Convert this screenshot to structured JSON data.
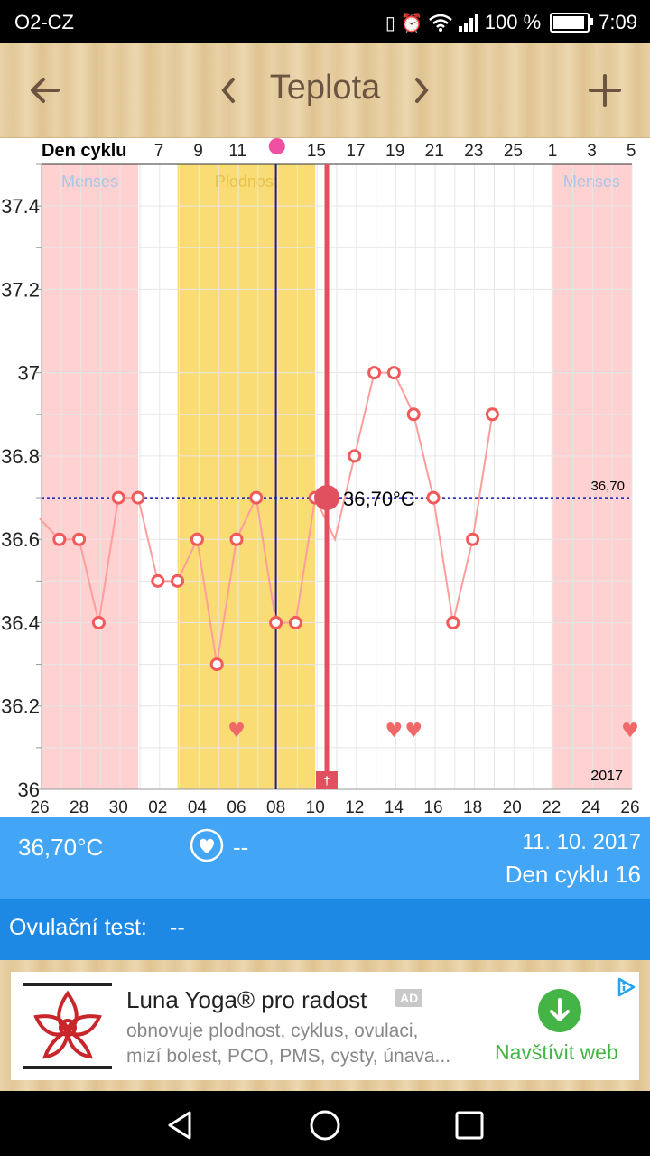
{
  "status": {
    "carrier": "O2-CZ",
    "battery_text": "100 %",
    "battery_level": 1.0,
    "time": "7:09",
    "icons": [
      "vibrate-icon",
      "alarm-icon",
      "wifi-icon",
      "signal-icon",
      "battery-icon"
    ]
  },
  "toolbar": {
    "title": "Teplota",
    "back_icon": "arrow-left-icon",
    "prev_icon": "chevron-left-icon",
    "next_icon": "chevron-right-icon",
    "add_icon": "plus-icon"
  },
  "chart_data": {
    "type": "line",
    "top_axis_label": "Den cyklu",
    "top_ticks": [
      "7",
      "9",
      "11",
      "",
      "15",
      "17",
      "19",
      "21",
      "23",
      "25",
      "1",
      "3",
      "5"
    ],
    "x_ticks": [
      "26",
      "28",
      "30",
      "02",
      "04",
      "06",
      "08",
      "10",
      "12",
      "14",
      "16",
      "18",
      "20",
      "22",
      "24",
      "26"
    ],
    "y_ticks": [
      "37.4",
      "37.2",
      "37",
      "36.8",
      "36.6",
      "36.4",
      "36.2",
      "36"
    ],
    "ylim": [
      36.0,
      37.5
    ],
    "regions": [
      {
        "label": "Menses",
        "color": "#ffd1d1"
      },
      {
        "label": "Plodnost",
        "color": "#f9dc74"
      },
      {
        "label": "Menses",
        "color": "#ffd1d1"
      }
    ],
    "series": [
      {
        "values": [
          36.65,
          36.6,
          36.6,
          36.4,
          36.7,
          36.7,
          36.5,
          36.5,
          36.6,
          36.3,
          36.6,
          36.7,
          36.4,
          36.4,
          36.7,
          36.6,
          36.8,
          37.0,
          37.0,
          36.9,
          36.7,
          36.4,
          36.6,
          36.9
        ]
      }
    ],
    "reference_value": "36,70",
    "selected_value_label": "36,70°C",
    "year_label": "2017",
    "heart_markers": 4,
    "colors": {
      "line": "#ff9d9d",
      "point": "#f05a5a",
      "selected": "#e0505f",
      "reference": "#1a1aaa"
    }
  },
  "info": {
    "temperature": "36,70°C",
    "heart_value": "--",
    "date": "11. 10. 2017",
    "cycle_day": "Den cyklu 16"
  },
  "ovulation": {
    "label": "Ovulační test:",
    "value": "--"
  },
  "ad": {
    "title": "Luna Yoga® pro radost",
    "badge": "AD",
    "line1": "obnovuje plodnost, cyklus, ovulaci,",
    "line2": "mizí bolest, PCO, PMS, cysty, únava...",
    "cta": "Navštívit web",
    "adchoices_icon": "adchoices-icon",
    "logo": "lotus-logo"
  },
  "nav": {
    "icons": [
      "back-triangle-icon",
      "home-circle-icon",
      "recents-square-icon"
    ]
  }
}
